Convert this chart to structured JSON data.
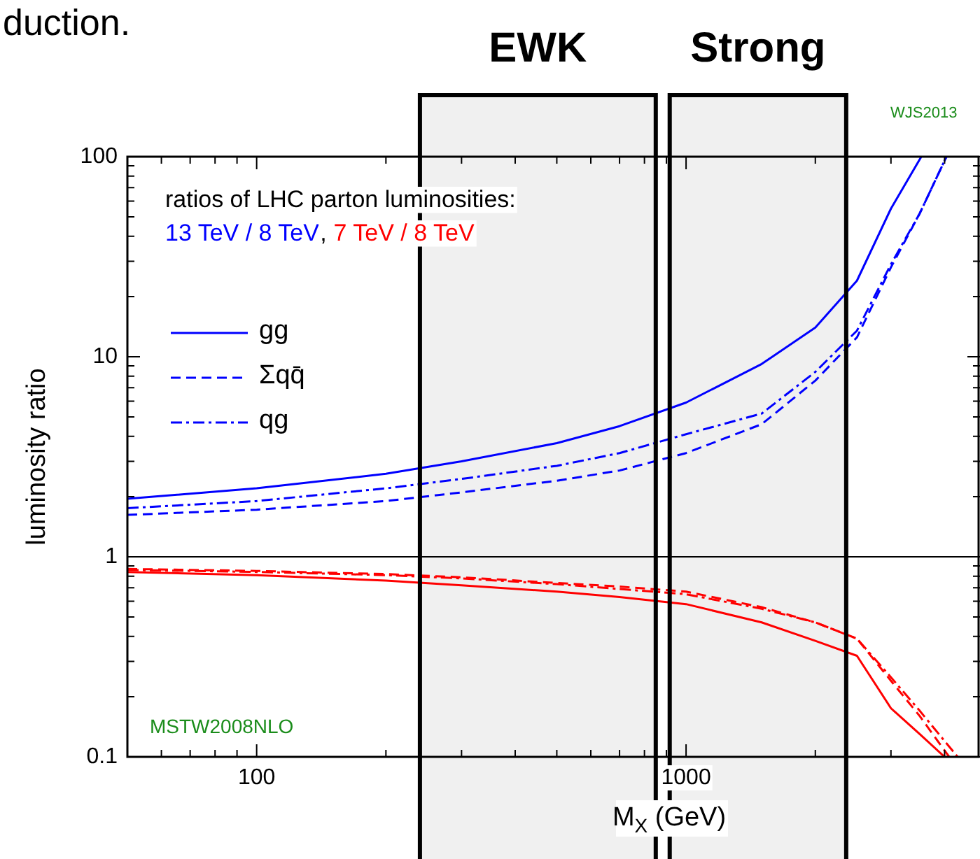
{
  "chart_data": {
    "type": "line",
    "xlabel": "M$_{X}$ (GeV)",
    "ylabel": "luminosity ratio",
    "annotations": [
      "duction.",
      "ratios of LHC parton luminosities:",
      "13 TeV / 8 TeV",
      ",",
      "7 TeV / 8 TeV",
      "WJS2013",
      "MSTW2008NLO"
    ],
    "log": "xy",
    "xlim": [
      50,
      4800
    ],
    "xticks": [
      {
        "value": 60,
        "label": null
      },
      {
        "value": 70,
        "label": null
      },
      {
        "value": 80,
        "label": null
      },
      {
        "value": 90,
        "label": null
      },
      100,
      {
        "value": 200,
        "label": null
      },
      {
        "value": 300,
        "label": null
      },
      {
        "value": 400,
        "label": null
      },
      {
        "value": 500,
        "label": null
      },
      {
        "value": 600,
        "label": null
      },
      {
        "value": 700,
        "label": null
      },
      {
        "value": 800,
        "label": null
      },
      {
        "value": 900,
        "label": null
      },
      1000,
      {
        "value": 2000,
        "label": null
      },
      {
        "value": 3000,
        "label": null
      },
      {
        "value": 4000,
        "label": null
      }
    ],
    "ylim": [
      0.1,
      100
    ],
    "yticks": [
      0.1,
      {
        "value": 0.2,
        "label": null
      },
      {
        "value": 0.3,
        "label": null
      },
      {
        "value": 0.4,
        "label": null
      },
      {
        "value": 0.5,
        "label": null
      },
      {
        "value": 0.6,
        "label": null
      },
      {
        "value": 0.7,
        "label": null
      },
      {
        "value": 0.8,
        "label": null
      },
      {
        "value": 0.9,
        "label": null
      },
      1,
      {
        "value": 2,
        "label": null
      },
      {
        "value": 3,
        "label": null
      },
      {
        "value": 4,
        "label": null
      },
      {
        "value": 5,
        "label": null
      },
      {
        "value": 6,
        "label": null
      },
      {
        "value": 7,
        "label": null
      },
      {
        "value": 8,
        "label": null
      },
      {
        "value": 9,
        "label": null
      },
      10,
      {
        "value": 20,
        "label": null
      },
      {
        "value": 30,
        "label": null
      },
      {
        "value": 40,
        "label": null
      },
      {
        "value": 50,
        "label": null
      },
      {
        "value": 60,
        "label": null
      },
      {
        "value": 70,
        "label": null
      },
      {
        "value": 80,
        "label": null
      },
      {
        "value": 90,
        "label": null
      },
      100
    ],
    "legend": "top left",
    "grid": false,
    "marker": "none",
    "ref_lines": [
      {
        "axis": "y",
        "value": 1,
        "color": "#000000"
      }
    ],
    "bands": [
      {
        "axis": "x",
        "from": 240,
        "to": 850,
        "label": "EWK",
        "color": "#000000"
      },
      {
        "axis": "x",
        "from": 916,
        "to": 2360,
        "label": "Strong",
        "color": "#000000"
      }
    ],
    "series": [
      {
        "name": "gg",
        "color": "#0000ff",
        "line_style": "solid",
        "x": [
          50,
          100,
          200,
          300,
          500,
          700,
          1000,
          1500,
          2000,
          2500,
          3000,
          3530
        ],
        "values": [
          1.95,
          2.2,
          2.6,
          3.0,
          3.7,
          4.5,
          5.9,
          9.2,
          14,
          24,
          55,
          100
        ]
      },
      {
        "name": "Σqq̄",
        "color": "#0000ff",
        "line_style": "dashed",
        "x": [
          50,
          100,
          200,
          300,
          500,
          700,
          1000,
          1500,
          2000,
          2500,
          3000,
          3500,
          4040
        ],
        "values": [
          1.62,
          1.72,
          1.9,
          2.1,
          2.4,
          2.7,
          3.3,
          4.6,
          7.6,
          12.5,
          28,
          52,
          100
        ]
      },
      {
        "name": "qg",
        "color": "#0000ff",
        "line_style": "dashdot",
        "x": [
          50,
          100,
          200,
          300,
          500,
          700,
          1000,
          1500,
          2000,
          2500,
          3000,
          3500,
          4040
        ],
        "values": [
          1.75,
          1.9,
          2.2,
          2.45,
          2.85,
          3.3,
          4.1,
          5.2,
          8.4,
          13.5,
          29,
          52,
          100
        ]
      },
      {
        "color": "#ff0000",
        "line_style": "solid",
        "x": [
          50,
          100,
          200,
          300,
          500,
          700,
          1000,
          1500,
          2000,
          2500,
          3000,
          3500,
          4000
        ],
        "values": [
          0.84,
          0.81,
          0.76,
          0.72,
          0.67,
          0.63,
          0.58,
          0.47,
          0.38,
          0.32,
          0.175,
          0.13,
          0.1
        ]
      },
      {
        "color": "#ff0000",
        "line_style": "dashed",
        "x": [
          50,
          100,
          200,
          300,
          500,
          700,
          1000,
          1500,
          2000,
          2500,
          3000,
          3500,
          4100
        ],
        "values": [
          0.87,
          0.85,
          0.82,
          0.79,
          0.74,
          0.71,
          0.67,
          0.56,
          0.47,
          0.39,
          0.24,
          0.16,
          0.1
        ]
      },
      {
        "color": "#ff0000",
        "line_style": "dashdot",
        "x": [
          50,
          100,
          200,
          300,
          500,
          700,
          1000,
          1500,
          2000,
          2500,
          3000,
          3500,
          4290
        ],
        "values": [
          0.86,
          0.84,
          0.81,
          0.78,
          0.73,
          0.69,
          0.65,
          0.55,
          0.47,
          0.39,
          0.25,
          0.17,
          0.1
        ]
      }
    ]
  }
}
